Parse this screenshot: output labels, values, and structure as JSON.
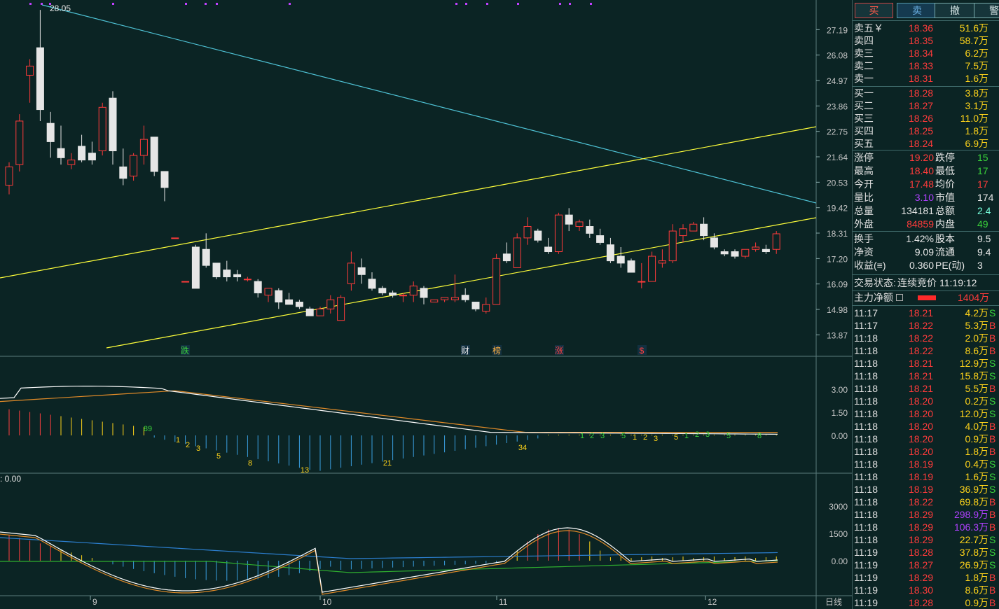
{
  "colors": {
    "background": "#0b2424",
    "up_candle": "#ff3b3b",
    "down_candle": "#e6e6e6",
    "price_line": "#4fc3d6",
    "channel_line": "#ffff3a",
    "ma_orange": "#e08a28",
    "ma_white": "#ffffff",
    "ma_blue": "#2c7fd0",
    "ma_green": "#2fae2f"
  },
  "chart": {
    "high_label": "28.05",
    "price_ticks": [
      "27.19",
      "26.08",
      "24.97",
      "23.86",
      "22.75",
      "21.64",
      "20.53",
      "19.42",
      "18.31",
      "17.20",
      "16.09",
      "14.98",
      "13.87"
    ],
    "markers": [
      "跌",
      "财",
      "榜",
      "涨",
      "$"
    ],
    "ind1_ticks": [
      "3.00",
      "1.50",
      "0.00"
    ],
    "ind1_numbers": [
      "89",
      "1",
      "2",
      "3",
      "5",
      "8",
      "13",
      "21",
      "34",
      "1",
      "2",
      "3",
      "5",
      "1",
      "2",
      "3",
      "5",
      "1",
      "2",
      "3",
      "5",
      "8"
    ],
    "ind2_label": ": 0.00",
    "ind2_ticks": [
      "3000",
      "1500",
      "0.00"
    ],
    "date_labels": [
      "9",
      "10",
      "11",
      "12"
    ],
    "period_label": "日线"
  },
  "chart_data": {
    "type": "candlestick",
    "ylim": [
      13.3,
      28.3
    ],
    "candles": [
      {
        "o": 20.4,
        "h": 21.4,
        "l": 20.0,
        "c": 21.2
      },
      {
        "o": 21.3,
        "h": 23.5,
        "l": 21.0,
        "c": 23.2
      },
      {
        "o": 25.2,
        "h": 25.9,
        "l": 24.0,
        "c": 25.6
      },
      {
        "o": 26.4,
        "h": 28.05,
        "l": 23.2,
        "c": 23.7
      },
      {
        "o": 23.1,
        "h": 23.6,
        "l": 21.6,
        "c": 22.3
      },
      {
        "o": 22.0,
        "h": 23.0,
        "l": 21.3,
        "c": 21.6
      },
      {
        "o": 21.3,
        "h": 21.8,
        "l": 21.1,
        "c": 21.5
      },
      {
        "o": 22.1,
        "h": 22.6,
        "l": 21.4,
        "c": 21.5
      },
      {
        "o": 21.8,
        "h": 22.3,
        "l": 21.3,
        "c": 21.5
      },
      {
        "o": 21.9,
        "h": 24.0,
        "l": 21.7,
        "c": 23.8
      },
      {
        "o": 24.2,
        "h": 24.5,
        "l": 21.3,
        "c": 21.9
      },
      {
        "o": 21.2,
        "h": 22.0,
        "l": 20.4,
        "c": 20.7
      },
      {
        "o": 20.8,
        "h": 21.8,
        "l": 20.6,
        "c": 21.7
      },
      {
        "o": 21.7,
        "h": 23.0,
        "l": 21.3,
        "c": 22.4
      },
      {
        "o": 22.5,
        "h": 22.5,
        "l": 20.8,
        "c": 21.0
      },
      {
        "o": 21.0,
        "h": 21.0,
        "l": 19.7,
        "c": 20.3
      },
      {
        "o": 18.1,
        "h": 18.1,
        "l": 18.1,
        "c": 18.1
      },
      {
        "o": 16.2,
        "h": 16.2,
        "l": 16.2,
        "c": 16.2
      },
      {
        "o": 17.7,
        "h": 17.8,
        "l": 15.9,
        "c": 15.9
      },
      {
        "o": 17.6,
        "h": 18.3,
        "l": 16.8,
        "c": 16.9
      },
      {
        "o": 17.0,
        "h": 17.0,
        "l": 16.3,
        "c": 16.4
      },
      {
        "o": 16.7,
        "h": 17.1,
        "l": 16.2,
        "c": 16.4
      },
      {
        "o": 16.5,
        "h": 16.7,
        "l": 16.2,
        "c": 16.4
      },
      {
        "o": 16.3,
        "h": 16.4,
        "l": 16.2,
        "c": 16.3
      },
      {
        "o": 16.2,
        "h": 16.3,
        "l": 15.5,
        "c": 15.7
      },
      {
        "o": 15.6,
        "h": 15.9,
        "l": 15.3,
        "c": 15.9
      },
      {
        "o": 15.8,
        "h": 15.9,
        "l": 15.0,
        "c": 15.3
      },
      {
        "o": 15.4,
        "h": 15.7,
        "l": 15.2,
        "c": 15.2
      },
      {
        "o": 15.3,
        "h": 15.4,
        "l": 15.0,
        "c": 15.1
      },
      {
        "o": 15.0,
        "h": 15.1,
        "l": 14.7,
        "c": 14.7
      },
      {
        "o": 14.7,
        "h": 15.1,
        "l": 14.7,
        "c": 15.0
      },
      {
        "o": 15.0,
        "h": 15.6,
        "l": 14.8,
        "c": 15.4
      },
      {
        "o": 14.5,
        "h": 15.6,
        "l": 14.5,
        "c": 15.5
      },
      {
        "o": 16.1,
        "h": 17.5,
        "l": 15.8,
        "c": 17.0
      },
      {
        "o": 16.8,
        "h": 17.2,
        "l": 16.1,
        "c": 16.5
      },
      {
        "o": 16.3,
        "h": 16.6,
        "l": 15.8,
        "c": 15.9
      },
      {
        "o": 15.9,
        "h": 16.0,
        "l": 15.6,
        "c": 15.7
      },
      {
        "o": 15.7,
        "h": 15.8,
        "l": 15.5,
        "c": 15.6
      },
      {
        "o": 15.6,
        "h": 15.7,
        "l": 15.3,
        "c": 15.6
      },
      {
        "o": 15.6,
        "h": 16.2,
        "l": 15.3,
        "c": 16.0
      },
      {
        "o": 15.9,
        "h": 16.0,
        "l": 15.2,
        "c": 15.5
      },
      {
        "o": 15.3,
        "h": 15.4,
        "l": 15.3,
        "c": 15.4
      },
      {
        "o": 15.4,
        "h": 15.5,
        "l": 15.3,
        "c": 15.5
      },
      {
        "o": 15.4,
        "h": 16.5,
        "l": 15.3,
        "c": 15.5
      },
      {
        "o": 15.6,
        "h": 15.9,
        "l": 15.3,
        "c": 15.4
      },
      {
        "o": 15.3,
        "h": 15.3,
        "l": 14.9,
        "c": 15.0
      },
      {
        "o": 14.9,
        "h": 15.5,
        "l": 14.8,
        "c": 15.2
      },
      {
        "o": 15.2,
        "h": 17.4,
        "l": 15.2,
        "c": 17.2
      },
      {
        "o": 17.4,
        "h": 17.9,
        "l": 17.0,
        "c": 17.1
      },
      {
        "o": 16.8,
        "h": 18.3,
        "l": 16.8,
        "c": 18.1
      },
      {
        "o": 18.1,
        "h": 19.0,
        "l": 17.8,
        "c": 18.6
      },
      {
        "o": 18.4,
        "h": 18.5,
        "l": 17.9,
        "c": 18.0
      },
      {
        "o": 17.7,
        "h": 18.1,
        "l": 17.4,
        "c": 17.5
      },
      {
        "o": 17.5,
        "h": 19.2,
        "l": 17.4,
        "c": 19.1
      },
      {
        "o": 19.1,
        "h": 19.4,
        "l": 18.4,
        "c": 18.7
      },
      {
        "o": 18.6,
        "h": 18.9,
        "l": 18.4,
        "c": 18.8
      },
      {
        "o": 18.6,
        "h": 18.9,
        "l": 18.1,
        "c": 18.3
      },
      {
        "o": 18.2,
        "h": 18.5,
        "l": 17.8,
        "c": 17.9
      },
      {
        "o": 17.8,
        "h": 18.1,
        "l": 17.0,
        "c": 17.1
      },
      {
        "o": 17.3,
        "h": 17.7,
        "l": 16.8,
        "c": 17.0
      },
      {
        "o": 17.1,
        "h": 17.2,
        "l": 16.6,
        "c": 16.6
      },
      {
        "o": 16.2,
        "h": 17.0,
        "l": 15.9,
        "c": 16.2
      },
      {
        "o": 16.2,
        "h": 17.5,
        "l": 16.2,
        "c": 17.3
      },
      {
        "o": 17.0,
        "h": 17.6,
        "l": 16.8,
        "c": 17.1
      },
      {
        "o": 17.1,
        "h": 18.7,
        "l": 17.0,
        "c": 18.4
      },
      {
        "o": 18.2,
        "h": 18.7,
        "l": 17.9,
        "c": 18.5
      },
      {
        "o": 18.4,
        "h": 18.8,
        "l": 18.4,
        "c": 18.7
      },
      {
        "o": 18.7,
        "h": 19.0,
        "l": 18.0,
        "c": 18.2
      },
      {
        "o": 18.1,
        "h": 18.3,
        "l": 17.6,
        "c": 17.7
      },
      {
        "o": 17.5,
        "h": 17.6,
        "l": 17.3,
        "c": 17.4
      },
      {
        "o": 17.5,
        "h": 17.6,
        "l": 17.2,
        "c": 17.3
      },
      {
        "o": 17.3,
        "h": 17.6,
        "l": 17.2,
        "c": 17.6
      },
      {
        "o": 17.6,
        "h": 17.9,
        "l": 17.5,
        "c": 17.7
      },
      {
        "o": 17.6,
        "h": 17.8,
        "l": 17.4,
        "c": 17.5
      },
      {
        "o": 17.6,
        "h": 18.4,
        "l": 17.4,
        "c": 18.28
      }
    ]
  },
  "panel": {
    "buttons": [
      "买",
      "卖",
      "撤",
      "警"
    ],
    "ask": [
      {
        "label": "卖五￥",
        "price": "18.36",
        "vol": "51.6万"
      },
      {
        "label": "卖四",
        "price": "18.35",
        "vol": "58.7万"
      },
      {
        "label": "卖三",
        "price": "18.34",
        "vol": "6.2万"
      },
      {
        "label": "卖二",
        "price": "18.33",
        "vol": "7.5万"
      },
      {
        "label": "卖一",
        "price": "18.31",
        "vol": "1.6万"
      }
    ],
    "bid": [
      {
        "label": "买一",
        "price": "18.28",
        "vol": "3.8万"
      },
      {
        "label": "买二",
        "price": "18.27",
        "vol": "3.1万"
      },
      {
        "label": "买三",
        "price": "18.26",
        "vol": "11.0万"
      },
      {
        "label": "买四",
        "price": "18.25",
        "vol": "1.8万"
      },
      {
        "label": "买五",
        "price": "18.24",
        "vol": "6.9万"
      }
    ],
    "stats": [
      {
        "l1": "涨停",
        "v1": "19.20",
        "c1": "red",
        "l2": "跌停",
        "v2": "15",
        "c2": "grn"
      },
      {
        "l1": "最高",
        "v1": "18.40",
        "c1": "red",
        "l2": "最低",
        "v2": "17",
        "c2": "grn"
      },
      {
        "l1": "今开",
        "v1": "17.48",
        "c1": "red",
        "l2": "均价",
        "v2": "17",
        "c2": "red"
      },
      {
        "l1": "量比",
        "v1": "3.10",
        "c1": "pur",
        "l2": "市值",
        "v2": "174",
        "c2": "wht"
      },
      {
        "l1": "总量",
        "v1": "134181",
        "c1": "wht",
        "l2": "总额",
        "v2": "2.4",
        "c2": "cyan"
      },
      {
        "l1": "外盘",
        "v1": "84859",
        "c1": "red",
        "l2": "内盘",
        "v2": "49",
        "c2": "grn"
      }
    ],
    "finance": [
      {
        "l1": "换手",
        "v1": "1.42%",
        "l2": "股本",
        "v2": "9.5"
      },
      {
        "l1": "净资",
        "v1": "9.09",
        "l2": "流通",
        "v2": "9.4"
      },
      {
        "l1": "收益(≡)",
        "v1": "0.360",
        "l2": "PE(动)",
        "v2": "3"
      }
    ],
    "status_label": "交易状态:",
    "status_value": "连续竞价",
    "status_time": "11:19:12",
    "main_force_label": "主力净额",
    "main_force_value": "1404万",
    "ticks": [
      {
        "t": "11:17",
        "p": "18.21",
        "v": "4.2万",
        "s": "S"
      },
      {
        "t": "11:17",
        "p": "18.22",
        "v": "5.3万",
        "s": "B"
      },
      {
        "t": "11:18",
        "p": "18.22",
        "v": "2.0万",
        "s": "B"
      },
      {
        "t": "11:18",
        "p": "18.22",
        "v": "8.6万",
        "s": "B"
      },
      {
        "t": "11:18",
        "p": "18.21",
        "v": "12.9万",
        "s": "S"
      },
      {
        "t": "11:18",
        "p": "18.21",
        "v": "15.8万",
        "s": "S"
      },
      {
        "t": "11:18",
        "p": "18.21",
        "v": "5.5万",
        "s": "B"
      },
      {
        "t": "11:18",
        "p": "18.20",
        "v": "0.2万",
        "s": "S"
      },
      {
        "t": "11:18",
        "p": "18.20",
        "v": "12.0万",
        "s": "S"
      },
      {
        "t": "11:18",
        "p": "18.20",
        "v": "4.0万",
        "s": "B"
      },
      {
        "t": "11:18",
        "p": "18.20",
        "v": "0.9万",
        "s": "B"
      },
      {
        "t": "11:18",
        "p": "18.20",
        "v": "1.8万",
        "s": "B"
      },
      {
        "t": "11:18",
        "p": "18.19",
        "v": "0.4万",
        "s": "S"
      },
      {
        "t": "11:18",
        "p": "18.19",
        "v": "1.6万",
        "s": "S"
      },
      {
        "t": "11:18",
        "p": "18.19",
        "v": "36.9万",
        "s": "S"
      },
      {
        "t": "11:18",
        "p": "18.22",
        "v": "69.8万",
        "s": "B"
      },
      {
        "t": "11:18",
        "p": "18.29",
        "v": "298.9万",
        "s": "B",
        "vc": "pur"
      },
      {
        "t": "11:18",
        "p": "18.29",
        "v": "106.3万",
        "s": "B",
        "vc": "pur"
      },
      {
        "t": "11:18",
        "p": "18.29",
        "v": "22.7万",
        "s": "S"
      },
      {
        "t": "11:19",
        "p": "18.28",
        "v": "37.8万",
        "s": "S"
      },
      {
        "t": "11:19",
        "p": "18.27",
        "v": "26.9万",
        "s": "S"
      },
      {
        "t": "11:19",
        "p": "18.29",
        "v": "1.8万",
        "s": "B"
      },
      {
        "t": "11:19",
        "p": "18.30",
        "v": "8.6万",
        "s": "B"
      },
      {
        "t": "11:19",
        "p": "18.28",
        "v": "0.9万",
        "s": "B"
      }
    ]
  }
}
